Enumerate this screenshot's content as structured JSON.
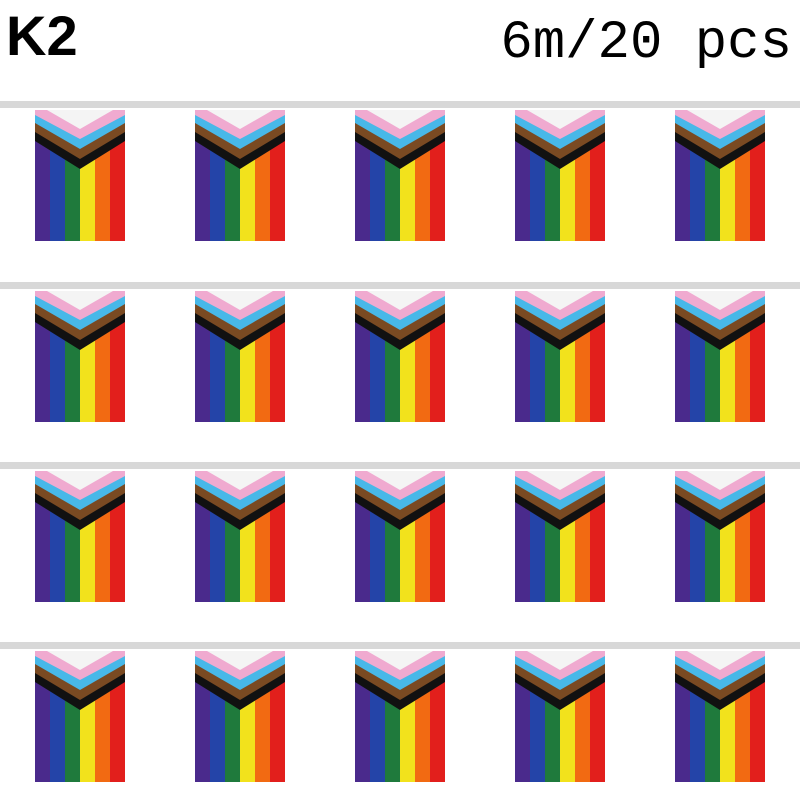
{
  "header": {
    "title": "K2",
    "subtitle": "6m/20 pcs"
  },
  "bunting": {
    "rows": 4,
    "flags_per_row": 5,
    "string_color": "#d8d8d8",
    "flag_colors": {
      "stripes": [
        "#4a2a8c",
        "#2444a8",
        "#1f7a3c",
        "#f2e21c",
        "#f26a12",
        "#e21f1c"
      ],
      "chevron": [
        "#111111",
        "#7a4a22",
        "#48b8e8",
        "#f0aad0",
        "#f4f4f4"
      ]
    }
  }
}
